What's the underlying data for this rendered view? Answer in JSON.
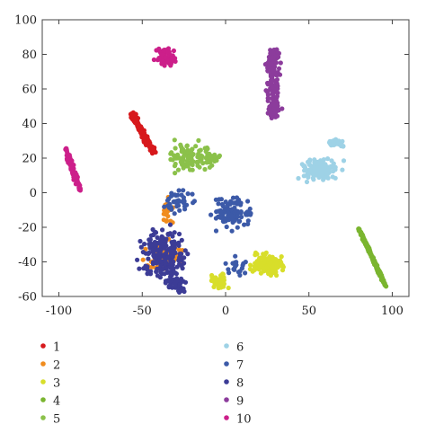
{
  "chart_data": {
    "type": "scatter",
    "title": "",
    "xlabel": "",
    "ylabel": "",
    "xlim": [
      -110,
      110
    ],
    "ylim": [
      -60,
      100
    ],
    "x_ticks": [
      "-100",
      "-50",
      "0",
      "50",
      "100"
    ],
    "y_ticks": [
      "100",
      "80",
      "60",
      "40",
      "20",
      "0",
      "-20",
      "-40",
      "-60"
    ],
    "grid": false,
    "legend_position": "bottom",
    "series": [
      {
        "name": "1",
        "color": "#d7191c",
        "clusters": [
          {
            "x": [
              -59,
              -40
            ],
            "y": [
              20,
              48
            ],
            "n": 140,
            "shape": "diag"
          }
        ]
      },
      {
        "name": "2",
        "color": "#f08c1e",
        "clusters": [
          {
            "x": [
              -55,
              -20
            ],
            "y": [
              -48,
              -25
            ],
            "n": 60
          },
          {
            "x": [
              -40,
              -30
            ],
            "y": [
              -25,
              0
            ],
            "n": 20
          }
        ]
      },
      {
        "name": "3",
        "color": "#d8de2a",
        "clusters": [
          {
            "x": [
              12,
              38
            ],
            "y": [
              -50,
              -33
            ],
            "n": 150
          },
          {
            "x": [
              -12,
              5
            ],
            "y": [
              -57,
              -45
            ],
            "n": 40
          }
        ]
      },
      {
        "name": "4",
        "color": "#7ab52f",
        "clusters": [
          {
            "x": [
              78,
              98
            ],
            "y": [
              -57,
              -18
            ],
            "n": 220,
            "shape": "rdiag"
          }
        ]
      },
      {
        "name": "5",
        "color": "#8bc14a",
        "clusters": [
          {
            "x": [
              -38,
              -5
            ],
            "y": [
              10,
              32
            ],
            "n": 90
          },
          {
            "x": [
              -15,
              -2
            ],
            "y": [
              14,
              24
            ],
            "n": 30
          }
        ]
      },
      {
        "name": "6",
        "color": "#9ed2e6",
        "clusters": [
          {
            "x": [
              40,
              72
            ],
            "y": [
              5,
              22
            ],
            "n": 140
          },
          {
            "x": [
              60,
              72
            ],
            "y": [
              25,
              32
            ],
            "n": 40
          }
        ]
      },
      {
        "name": "7",
        "color": "#3c5aa8",
        "clusters": [
          {
            "x": [
              -12,
              18
            ],
            "y": [
              -25,
              2
            ],
            "n": 110
          },
          {
            "x": [
              -40,
              -15
            ],
            "y": [
              -15,
              5
            ],
            "n": 40
          },
          {
            "x": [
              -3,
              15
            ],
            "y": [
              -50,
              -35
            ],
            "n": 20
          }
        ]
      },
      {
        "name": "8",
        "color": "#3c3c96",
        "clusters": [
          {
            "x": [
              -55,
              -20
            ],
            "y": [
              -58,
              -15
            ],
            "n": 200
          },
          {
            "x": [
              -38,
              -20
            ],
            "y": [
              -60,
              -48
            ],
            "n": 40
          }
        ]
      },
      {
        "name": "9",
        "color": "#8c3c9c",
        "clusters": [
          {
            "x": [
              20,
              37
            ],
            "y": [
              42,
              84
            ],
            "n": 170,
            "shape": "vert"
          }
        ]
      },
      {
        "name": "10",
        "color": "#cc1f8a",
        "clusters": [
          {
            "x": [
              -98,
              -85
            ],
            "y": [
              -2,
              28
            ],
            "n": 100,
            "shape": "diag"
          },
          {
            "x": [
              -44,
              -27
            ],
            "y": [
              72,
              85
            ],
            "n": 70
          }
        ]
      }
    ]
  }
}
